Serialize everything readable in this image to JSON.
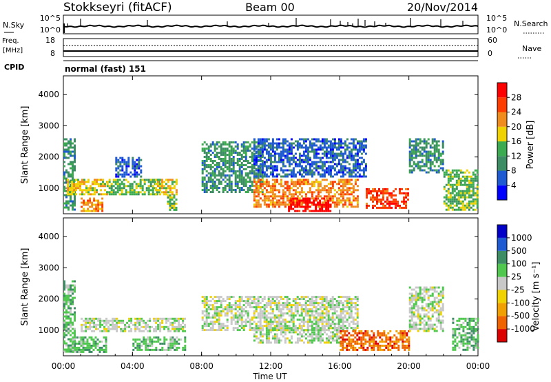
{
  "header": {
    "radar": "Stokkseyri (fitACF)",
    "beam": "Beam 00",
    "date": "20/Nov/2014"
  },
  "panels": {
    "nsky": {
      "label": "N.Sky",
      "left_ticks": [
        "10^5",
        "10^0"
      ],
      "right_ticks": [
        "10^5",
        "10^0"
      ],
      "right_label": "N.Search"
    },
    "freq": {
      "label_top": "Freq.",
      "label_units": "[MHz]",
      "left_ticks": [
        "18",
        "8"
      ],
      "right_ticks": [
        "60",
        "0"
      ],
      "right_label": "Nave"
    },
    "cpid": {
      "label": "CPID",
      "text": "normal (fast) 151"
    }
  },
  "chart_data": [
    {
      "type": "heatmap",
      "name": "power",
      "ylabel": "Slant Range [km]",
      "yticks": [
        "1000",
        "2000",
        "3000",
        "4000"
      ],
      "ylim": [
        180,
        4600
      ],
      "xlim": [
        0,
        24
      ],
      "colorbar": {
        "label": "Power [dB]",
        "ticks": [
          "4",
          "8",
          "12",
          "16",
          "20",
          "24",
          "28"
        ],
        "colors": [
          "#0000ff",
          "#1e5ad2",
          "#3c8c64",
          "#3caa50",
          "#f0d200",
          "#f08c1e",
          "#ff3c00",
          "#ff0000"
        ]
      },
      "regions": [
        {
          "x": [
            0.0,
            0.6
          ],
          "y": [
            300,
            2600
          ],
          "level": 2
        },
        {
          "x": [
            0.2,
            2.5
          ],
          "y": [
            800,
            1300
          ],
          "level": 4
        },
        {
          "x": [
            1.0,
            2.2
          ],
          "y": [
            300,
            700
          ],
          "level": 5
        },
        {
          "x": [
            2.5,
            5.5
          ],
          "y": [
            800,
            1300
          ],
          "level": 3
        },
        {
          "x": [
            5.3,
            6.5
          ],
          "y": [
            800,
            1300
          ],
          "level": 4
        },
        {
          "x": [
            3.0,
            4.5
          ],
          "y": [
            1400,
            2000
          ],
          "level": 1
        },
        {
          "x": [
            6.0,
            6.5
          ],
          "y": [
            300,
            800
          ],
          "level": 3
        },
        {
          "x": [
            8.0,
            11.5
          ],
          "y": [
            900,
            2500
          ],
          "level": 2
        },
        {
          "x": [
            11.0,
            17.0
          ],
          "y": [
            400,
            1300
          ],
          "level": 5
        },
        {
          "x": [
            13.0,
            15.5
          ],
          "y": [
            250,
            700
          ],
          "level": 7
        },
        {
          "x": [
            11.0,
            17.5
          ],
          "y": [
            1400,
            2600
          ],
          "level": 1
        },
        {
          "x": [
            17.5,
            20.0
          ],
          "y": [
            400,
            1000
          ],
          "level": 6
        },
        {
          "x": [
            20.0,
            22.0
          ],
          "y": [
            1500,
            2600
          ],
          "level": 2
        },
        {
          "x": [
            22.0,
            24.0
          ],
          "y": [
            300,
            1600
          ],
          "level": 3
        }
      ]
    },
    {
      "type": "heatmap",
      "name": "velocity",
      "ylabel": "Slant Range [km]",
      "yticks": [
        "1000",
        "2000",
        "3000",
        "4000"
      ],
      "ylim": [
        180,
        4600
      ],
      "xlim": [
        0,
        24
      ],
      "colorbar": {
        "label": "Velocity [m s⁻¹]",
        "ticks": [
          "-1000",
          "-500",
          "-100",
          "-25",
          "25",
          "100",
          "500",
          "1000"
        ],
        "colors": [
          "#dc0000",
          "#f06400",
          "#f0a000",
          "#f0d200",
          "#c8c8c8",
          "#50c850",
          "#3c8c64",
          "#1e5ad2",
          "#0000c8"
        ]
      },
      "regions": [
        {
          "x": [
            0.0,
            0.6
          ],
          "y": [
            300,
            2600
          ],
          "level": 5
        },
        {
          "x": [
            1.0,
            7.0
          ],
          "y": [
            1000,
            1400
          ],
          "level": 4
        },
        {
          "x": [
            0.5,
            2.5
          ],
          "y": [
            300,
            800
          ],
          "level": 5
        },
        {
          "x": [
            4.0,
            7.0
          ],
          "y": [
            400,
            800
          ],
          "level": 5
        },
        {
          "x": [
            8.0,
            17.0
          ],
          "y": [
            1000,
            2100
          ],
          "level": 4
        },
        {
          "x": [
            11.0,
            16.0
          ],
          "y": [
            600,
            1100
          ],
          "level": 4
        },
        {
          "x": [
            16.0,
            20.0
          ],
          "y": [
            400,
            1000
          ],
          "level": 1
        },
        {
          "x": [
            20.0,
            22.0
          ],
          "y": [
            1000,
            2400
          ],
          "level": 4
        },
        {
          "x": [
            22.5,
            24.0
          ],
          "y": [
            400,
            1400
          ],
          "level": 5
        }
      ]
    }
  ],
  "xaxis": {
    "ticks": [
      "00:00",
      "04:00",
      "08:00",
      "12:00",
      "16:00",
      "20:00",
      "00:00"
    ],
    "label": "Time UT"
  }
}
